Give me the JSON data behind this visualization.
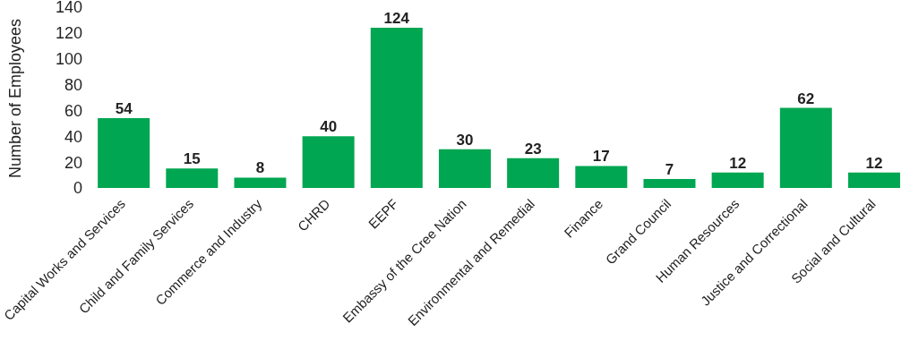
{
  "chart_data": {
    "type": "bar",
    "ylabel": "Number of Employees",
    "categories": [
      "Capital Works and Services",
      "Child and Family Services",
      "Commerce and Industry",
      "CHRD",
      "EEPF",
      "Embassy of the Cree Nation",
      "Environmental and Remedial",
      "Finance",
      "Grand Council",
      "Human Resources",
      "Justice and Correctional",
      "Social and Cultural"
    ],
    "values": [
      54,
      15,
      8,
      40,
      124,
      30,
      23,
      17,
      7,
      12,
      62,
      12
    ],
    "color": "#00a651",
    "ylim": [
      0,
      140
    ],
    "yticks": [
      0,
      20,
      40,
      60,
      80,
      100,
      120,
      140
    ],
    "grid": false,
    "legend": false,
    "data_labels": true
  }
}
